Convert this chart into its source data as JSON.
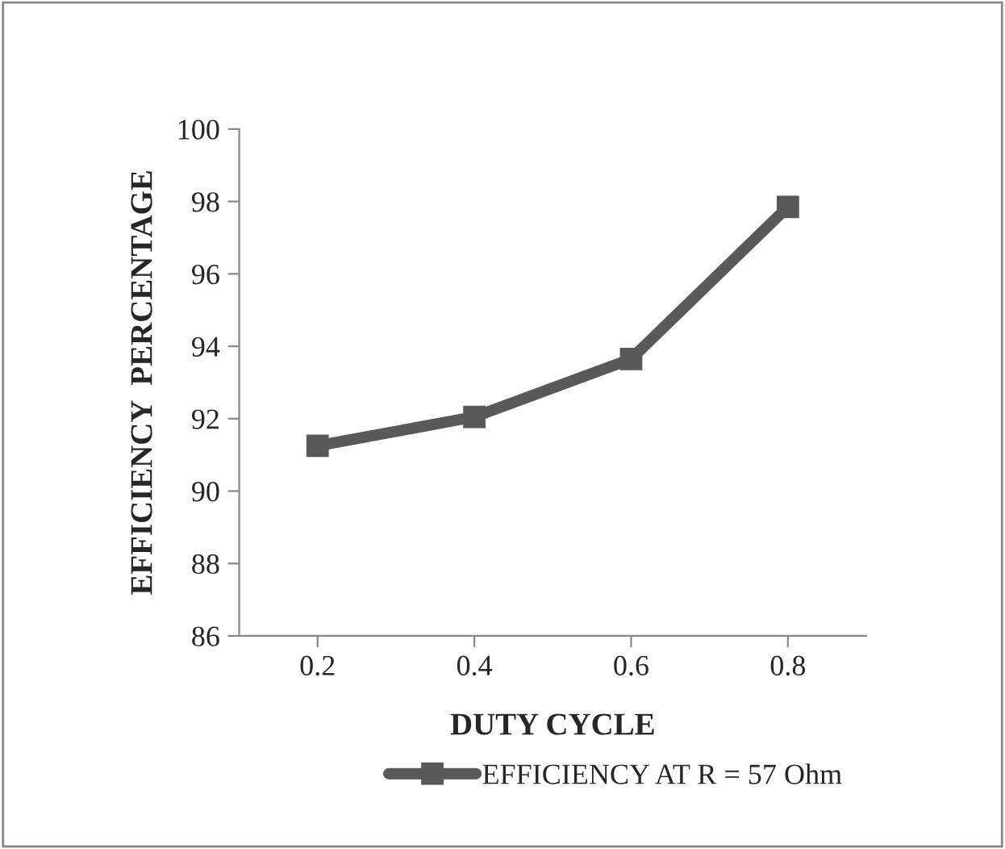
{
  "chart_data": {
    "type": "line",
    "xlabel": "DUTY CYCLE",
    "ylabel": "EFFICIENCY  PERCENTAGE",
    "categories": [
      "0.2",
      "0.4",
      "0.6",
      "0.8"
    ],
    "series": [
      {
        "name": "EFFICIENCY AT R = 57 Ohm",
        "color": "#595959",
        "values": [
          91.25,
          92.05,
          93.65,
          97.85
        ]
      }
    ],
    "ylim": [
      86,
      100
    ],
    "yticks": [
      86,
      88,
      90,
      92,
      94,
      96,
      98,
      100
    ],
    "grid": false,
    "legend": "bottom",
    "marker": "square",
    "line_style": "solid"
  }
}
